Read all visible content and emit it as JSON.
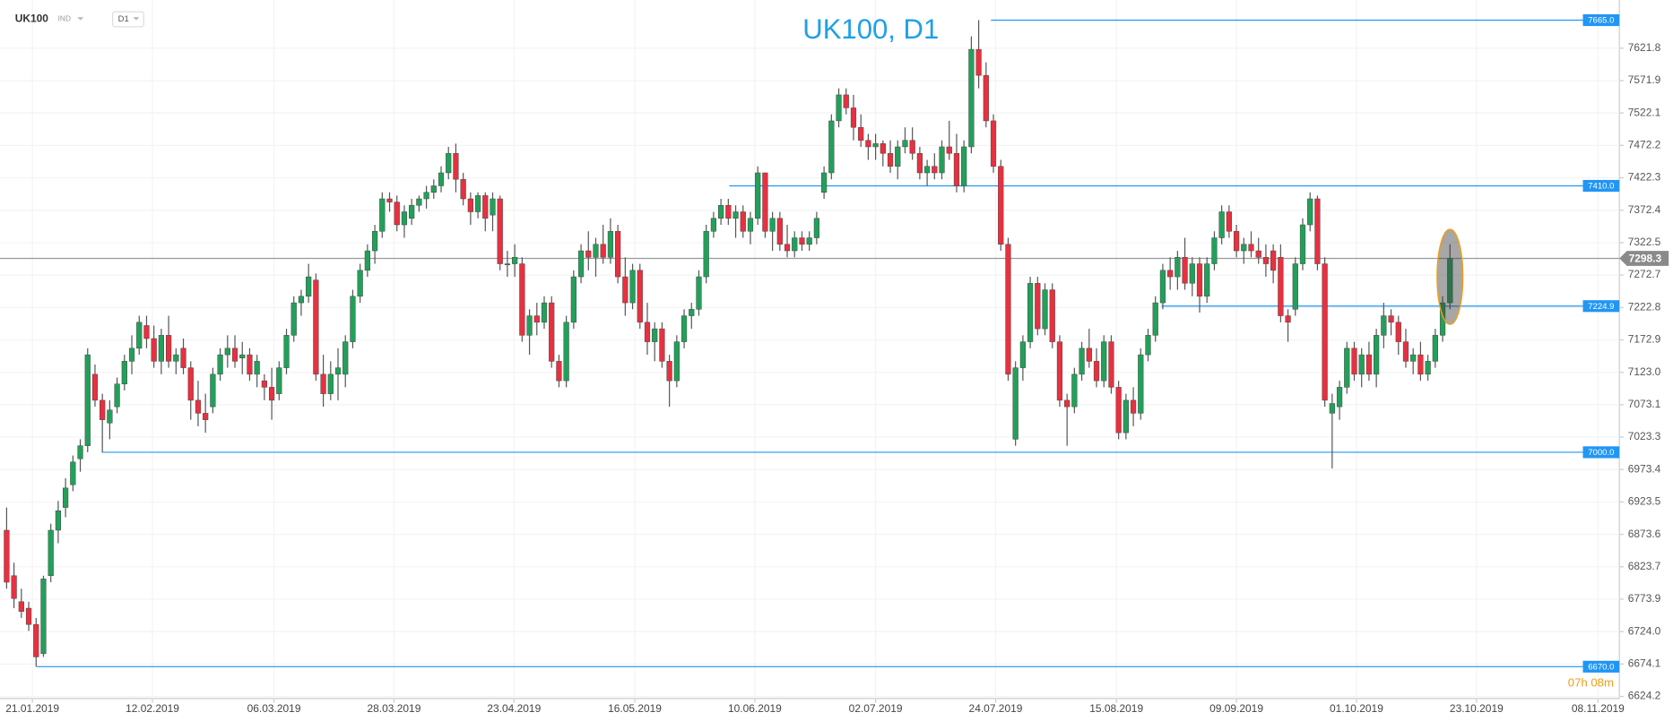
{
  "header": {
    "symbol": "UK100",
    "market": "IND",
    "timeframe": "D1",
    "countdown": "07h 08m"
  },
  "chart_data": {
    "type": "candlestick",
    "title": "UK100, D1",
    "ylim": [
      6621,
      7696
    ],
    "xlim": [
      -0.9,
      219
    ],
    "yticks": [
      7621.8,
      7571.9,
      7522.1,
      7472.2,
      7422.3,
      7372.4,
      7322.5,
      7272.7,
      7222.8,
      7172.9,
      {
        "value": 7123,
        "label": "7123.0"
      },
      7073.1,
      7023.3,
      6973.4,
      6923.5,
      6873.6,
      6823.7,
      6773.9,
      {
        "value": 6724,
        "label": "6724.0"
      },
      6674.1,
      6624.2
    ],
    "xticks": [
      {
        "value": 3.5,
        "label": "21.01.2019"
      },
      {
        "value": 19.8,
        "label": "12.02.2019"
      },
      {
        "value": 36.3,
        "label": "06.03.2019"
      },
      {
        "value": 52.6,
        "label": "28.03.2019"
      },
      {
        "value": 68.9,
        "label": "23.04.2019"
      },
      {
        "value": 85.3,
        "label": "16.05.2019"
      },
      {
        "value": 101.6,
        "label": "10.06.2019"
      },
      {
        "value": 118,
        "label": "02.07.2019"
      },
      {
        "value": 134.3,
        "label": "24.07.2019"
      },
      {
        "value": 150.7,
        "label": "15.08.2019"
      },
      {
        "value": 167,
        "label": "09.09.2019"
      },
      {
        "value": 183.3,
        "label": "01.10.2019"
      },
      {
        "value": 199.6,
        "label": "23.10.2019"
      },
      {
        "value": 216.1,
        "label": "08.11.2019"
      }
    ],
    "up_color": "#22a05a",
    "down_color": "#e8303f",
    "level_color": "#2196f3",
    "grid": true,
    "levels": [
      {
        "value": 7665,
        "label": "7665.0"
      },
      {
        "value": 7410,
        "label": "7410.0"
      },
      7224.9,
      {
        "value": 7000,
        "label": "7000.0"
      },
      {
        "value": 6670,
        "label": "6670.0"
      }
    ],
    "current_price": 7298.3,
    "ohlc": [
      [
        6880,
        6915,
        6790,
        6800
      ],
      [
        6810,
        6830,
        6760,
        6775
      ],
      [
        6770,
        6790,
        6745,
        6755
      ],
      [
        6760,
        6770,
        6725,
        6735
      ],
      [
        6735,
        6745,
        6670,
        6685
      ],
      [
        6690,
        6810,
        6685,
        6805
      ],
      [
        6810,
        6890,
        6800,
        6880
      ],
      [
        6880,
        6925,
        6860,
        6910
      ],
      [
        6915,
        6960,
        6900,
        6945
      ],
      [
        6950,
        6995,
        6940,
        6985
      ],
      [
        6990,
        7020,
        6970,
        7010
      ],
      [
        7010,
        7160,
        7000,
        7150
      ],
      [
        7120,
        7135,
        7070,
        7080
      ],
      [
        7080,
        7090,
        7000,
        7050
      ],
      [
        7045,
        7080,
        7020,
        7065
      ],
      [
        7070,
        7115,
        7060,
        7105
      ],
      [
        7105,
        7150,
        7095,
        7140
      ],
      [
        7140,
        7180,
        7120,
        7160
      ],
      [
        7160,
        7210,
        7150,
        7200
      ],
      [
        7195,
        7210,
        7160,
        7175
      ],
      [
        7175,
        7195,
        7130,
        7140
      ],
      [
        7140,
        7190,
        7120,
        7180
      ],
      [
        7180,
        7210,
        7130,
        7140
      ],
      [
        7140,
        7160,
        7120,
        7150
      ],
      [
        7160,
        7175,
        7120,
        7130
      ],
      [
        7130,
        7140,
        7050,
        7080
      ],
      [
        7080,
        7110,
        7040,
        7060
      ],
      [
        7060,
        7090,
        7030,
        7050
      ],
      [
        7070,
        7130,
        7060,
        7120
      ],
      [
        7120,
        7160,
        7110,
        7150
      ],
      [
        7150,
        7180,
        7130,
        7160
      ],
      [
        7160,
        7180,
        7130,
        7140
      ],
      [
        7145,
        7170,
        7120,
        7150
      ],
      [
        7150,
        7160,
        7110,
        7120
      ],
      [
        7120,
        7150,
        7100,
        7140
      ],
      [
        7110,
        7120,
        7080,
        7100
      ],
      [
        7100,
        7130,
        7050,
        7080
      ],
      [
        7090,
        7140,
        7080,
        7130
      ],
      [
        7130,
        7190,
        7120,
        7180
      ],
      [
        7180,
        7240,
        7170,
        7230
      ],
      [
        7230,
        7250,
        7210,
        7240
      ],
      [
        7240,
        7290,
        7230,
        7270
      ],
      [
        7265,
        7275,
        7110,
        7120
      ],
      [
        7120,
        7150,
        7070,
        7090
      ],
      [
        7090,
        7140,
        7080,
        7120
      ],
      [
        7120,
        7160,
        7080,
        7130
      ],
      [
        7120,
        7180,
        7100,
        7170
      ],
      [
        7170,
        7250,
        7160,
        7240
      ],
      [
        7240,
        7290,
        7230,
        7280
      ],
      [
        7280,
        7320,
        7270,
        7310
      ],
      [
        7310,
        7350,
        7290,
        7340
      ],
      [
        7340,
        7400,
        7330,
        7390
      ],
      [
        7390,
        7400,
        7370,
        7385
      ],
      [
        7385,
        7395,
        7340,
        7350
      ],
      [
        7350,
        7380,
        7330,
        7370
      ],
      [
        7360,
        7390,
        7350,
        7380
      ],
      [
        7380,
        7395,
        7370,
        7390
      ],
      [
        7390,
        7410,
        7375,
        7400
      ],
      [
        7400,
        7420,
        7390,
        7410
      ],
      [
        7410,
        7440,
        7400,
        7430
      ],
      [
        7430,
        7470,
        7420,
        7460
      ],
      [
        7460,
        7475,
        7400,
        7420
      ],
      [
        7420,
        7430,
        7380,
        7390
      ],
      [
        7390,
        7400,
        7350,
        7370
      ],
      [
        7370,
        7400,
        7360,
        7395
      ],
      [
        7395,
        7400,
        7340,
        7360
      ],
      [
        7365,
        7400,
        7340,
        7390
      ],
      [
        7390,
        7395,
        7280,
        7290
      ],
      [
        7290,
        7310,
        7270,
        7290
      ],
      [
        7290,
        7320,
        7270,
        7300
      ],
      [
        7290,
        7300,
        7170,
        7180
      ],
      [
        7180,
        7220,
        7150,
        7210
      ],
      [
        7210,
        7230,
        7180,
        7200
      ],
      [
        7200,
        7240,
        7190,
        7230
      ],
      [
        7230,
        7240,
        7130,
        7140
      ],
      [
        7140,
        7150,
        7100,
        7110
      ],
      [
        7110,
        7210,
        7100,
        7200
      ],
      [
        7200,
        7280,
        7190,
        7270
      ],
      [
        7270,
        7320,
        7260,
        7310
      ],
      [
        7310,
        7340,
        7280,
        7300
      ],
      [
        7300,
        7330,
        7270,
        7320
      ],
      [
        7320,
        7350,
        7290,
        7300
      ],
      [
        7300,
        7360,
        7290,
        7340
      ],
      [
        7340,
        7350,
        7260,
        7270
      ],
      [
        7270,
        7300,
        7210,
        7230
      ],
      [
        7230,
        7290,
        7220,
        7280
      ],
      [
        7280,
        7290,
        7190,
        7200
      ],
      [
        7200,
        7230,
        7150,
        7170
      ],
      [
        7170,
        7200,
        7140,
        7190
      ],
      [
        7190,
        7200,
        7130,
        7140
      ],
      [
        7140,
        7150,
        7070,
        7110
      ],
      [
        7110,
        7180,
        7100,
        7170
      ],
      [
        7170,
        7220,
        7160,
        7210
      ],
      [
        7210,
        7230,
        7190,
        7220
      ],
      [
        7220,
        7280,
        7210,
        7270
      ],
      [
        7270,
        7350,
        7260,
        7340
      ],
      [
        7340,
        7370,
        7330,
        7360
      ],
      [
        7360,
        7390,
        7350,
        7380
      ],
      [
        7380,
        7390,
        7350,
        7360
      ],
      [
        7360,
        7380,
        7330,
        7370
      ],
      [
        7370,
        7380,
        7330,
        7340
      ],
      [
        7340,
        7370,
        7320,
        7360
      ],
      [
        7360,
        7440,
        7350,
        7430
      ],
      [
        7430,
        7430,
        7330,
        7340
      ],
      [
        7340,
        7370,
        7310,
        7360
      ],
      [
        7360,
        7370,
        7310,
        7320
      ],
      [
        7320,
        7350,
        7300,
        7310
      ],
      [
        7310,
        7340,
        7300,
        7330
      ],
      [
        7330,
        7340,
        7310,
        7320
      ],
      [
        7320,
        7340,
        7310,
        7330
      ],
      [
        7330,
        7370,
        7320,
        7360
      ],
      [
        7400,
        7440,
        7390,
        7430
      ],
      [
        7430,
        7520,
        7420,
        7510
      ],
      [
        7510,
        7560,
        7500,
        7550
      ],
      [
        7550,
        7560,
        7520,
        7530
      ],
      [
        7530,
        7550,
        7480,
        7500
      ],
      [
        7500,
        7520,
        7470,
        7480
      ],
      [
        7480,
        7490,
        7450,
        7470
      ],
      [
        7470,
        7490,
        7450,
        7475
      ],
      [
        7475,
        7480,
        7440,
        7460
      ],
      [
        7460,
        7480,
        7430,
        7440
      ],
      [
        7440,
        7480,
        7420,
        7470
      ],
      [
        7470,
        7500,
        7460,
        7480
      ],
      [
        7480,
        7500,
        7450,
        7460
      ],
      [
        7460,
        7470,
        7420,
        7430
      ],
      [
        7430,
        7450,
        7410,
        7440
      ],
      [
        7440,
        7460,
        7420,
        7430
      ],
      [
        7430,
        7480,
        7420,
        7470
      ],
      [
        7470,
        7510,
        7450,
        7460
      ],
      [
        7460,
        7490,
        7400,
        7410
      ],
      [
        7410,
        7480,
        7400,
        7470
      ],
      [
        7470,
        7640,
        7460,
        7620
      ],
      [
        7620,
        7665,
        7560,
        7580
      ],
      [
        7580,
        7600,
        7500,
        7510
      ],
      [
        7510,
        7520,
        7430,
        7440
      ],
      [
        7440,
        7450,
        7310,
        7320
      ],
      [
        7320,
        7330,
        7110,
        7120
      ],
      [
        7020,
        7140,
        7010,
        7130
      ],
      [
        7130,
        7180,
        7110,
        7170
      ],
      [
        7170,
        7270,
        7160,
        7260
      ],
      [
        7260,
        7270,
        7180,
        7190
      ],
      [
        7190,
        7260,
        7180,
        7250
      ],
      [
        7250,
        7260,
        7160,
        7170
      ],
      [
        7170,
        7180,
        7070,
        7080
      ],
      [
        7080,
        7090,
        7010,
        7070
      ],
      [
        7070,
        7130,
        7060,
        7120
      ],
      [
        7120,
        7170,
        7110,
        7160
      ],
      [
        7160,
        7190,
        7130,
        7140
      ],
      [
        7140,
        7160,
        7100,
        7110
      ],
      [
        7110,
        7180,
        7100,
        7170
      ],
      [
        7170,
        7180,
        7090,
        7100
      ],
      [
        7100,
        7110,
        7020,
        7030
      ],
      [
        7030,
        7090,
        7020,
        7080
      ],
      [
        7080,
        7100,
        7040,
        7060
      ],
      [
        7060,
        7160,
        7050,
        7150
      ],
      [
        7150,
        7190,
        7140,
        7180
      ],
      [
        7180,
        7240,
        7170,
        7230
      ],
      [
        7230,
        7290,
        7220,
        7280
      ],
      [
        7280,
        7300,
        7250,
        7270
      ],
      [
        7270,
        7310,
        7250,
        7300
      ],
      [
        7300,
        7330,
        7250,
        7260
      ],
      [
        7260,
        7300,
        7240,
        7290
      ],
      [
        7290,
        7300,
        7215,
        7240
      ],
      [
        7240,
        7300,
        7230,
        7290
      ],
      [
        7290,
        7340,
        7280,
        7330
      ],
      [
        7330,
        7380,
        7320,
        7370
      ],
      [
        7370,
        7380,
        7330,
        7340
      ],
      [
        7340,
        7350,
        7300,
        7310
      ],
      [
        7310,
        7330,
        7290,
        7320
      ],
      [
        7320,
        7340,
        7300,
        7310
      ],
      [
        7310,
        7330,
        7290,
        7300
      ],
      [
        7300,
        7320,
        7270,
        7290
      ],
      [
        7310,
        7320,
        7260,
        7280
      ],
      [
        7300,
        7320,
        7200,
        7210
      ],
      [
        7210,
        7220,
        7170,
        7200
      ],
      [
        7220,
        7300,
        7210,
        7290
      ],
      [
        7290,
        7360,
        7280,
        7350
      ],
      [
        7350,
        7400,
        7340,
        7390
      ],
      [
        7390,
        7395,
        7280,
        7290
      ],
      [
        7290,
        7300,
        7070,
        7080
      ],
      [
        7060,
        7090,
        6975,
        7075
      ],
      [
        7070,
        7110,
        7050,
        7100
      ],
      [
        7100,
        7170,
        7090,
        7160
      ],
      [
        7160,
        7170,
        7110,
        7120
      ],
      [
        7120,
        7160,
        7100,
        7150
      ],
      [
        7150,
        7170,
        7110,
        7120
      ],
      [
        7120,
        7190,
        7100,
        7180
      ],
      [
        7180,
        7230,
        7160,
        7210
      ],
      [
        7210,
        7220,
        7180,
        7200
      ],
      [
        7200,
        7210,
        7150,
        7170
      ],
      [
        7170,
        7190,
        7130,
        7140
      ],
      [
        7140,
        7160,
        7120,
        7150
      ],
      [
        7150,
        7170,
        7110,
        7120
      ],
      [
        7120,
        7150,
        7110,
        7140
      ],
      [
        7140,
        7190,
        7130,
        7180
      ],
      [
        7180,
        7240,
        7170,
        7230
      ],
      [
        7230,
        7320,
        7220,
        7298.3
      ]
    ]
  }
}
